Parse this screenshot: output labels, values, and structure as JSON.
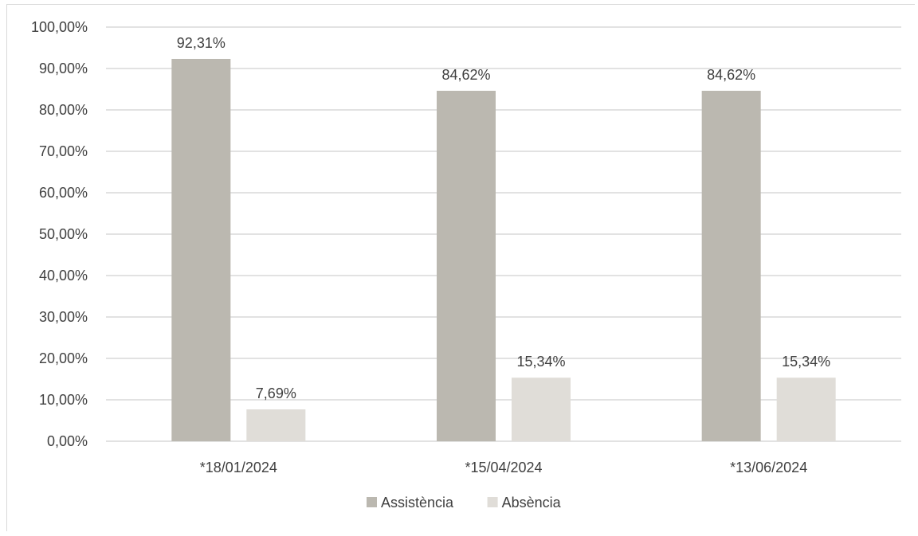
{
  "chart_data": {
    "type": "bar",
    "categories": [
      "*18/01/2024",
      "*15/04/2024",
      "*13/06/2024"
    ],
    "series": [
      {
        "name": "Assistència",
        "values": [
          92.31,
          84.62,
          84.62
        ],
        "labels": [
          "92,31%",
          "84,62%",
          "84,62%"
        ],
        "color": "#bbb8b0"
      },
      {
        "name": "Absència",
        "values": [
          7.69,
          15.34,
          15.34
        ],
        "labels": [
          "7,69%",
          "15,34%",
          "15,34%"
        ],
        "color": "#e0ddd8"
      }
    ],
    "ylim": [
      0,
      100
    ],
    "yticks": [
      0,
      10,
      20,
      30,
      40,
      50,
      60,
      70,
      80,
      90,
      100
    ],
    "ytick_labels": [
      "0,00%",
      "10,00%",
      "20,00%",
      "30,00%",
      "40,00%",
      "50,00%",
      "60,00%",
      "70,00%",
      "80,00%",
      "90,00%",
      "100,00%"
    ],
    "grid": true,
    "legend_position": "bottom",
    "gridline_color": "#d9d9d9"
  }
}
